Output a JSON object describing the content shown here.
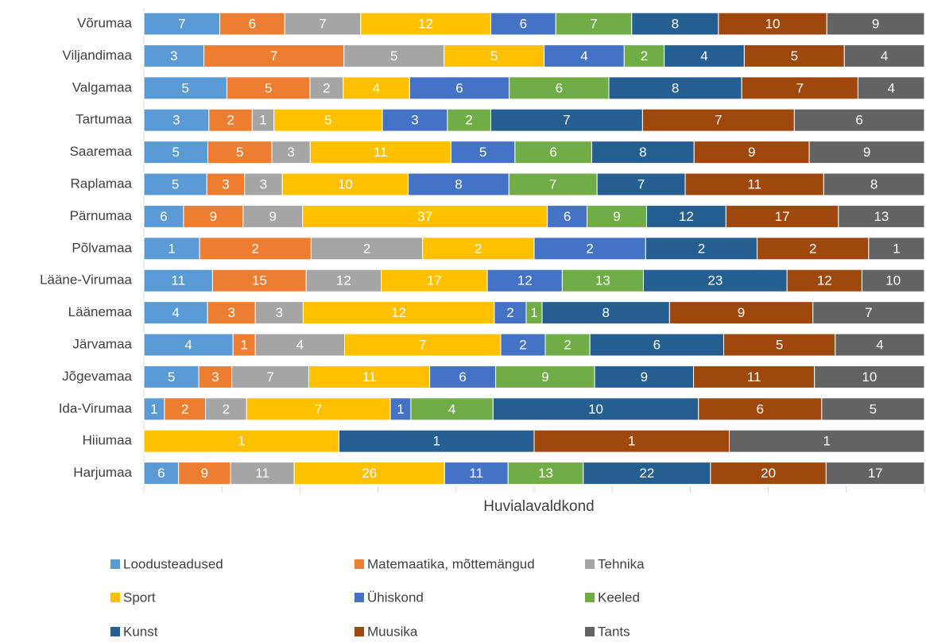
{
  "chart_data": {
    "type": "bar",
    "orientation": "horizontal",
    "stacking": "percent",
    "x_label": "Huvialavaldkond",
    "categories": [
      "Võrumaa",
      "Viljandimaa",
      "Valgamaa",
      "Tartumaa",
      "Saaremaa",
      "Raplamaa",
      "Pärnumaa",
      "Põlvamaa",
      "Lääne-Virumaa",
      "Läänemaa",
      "Järvamaa",
      "Jõgevamaa",
      "Ida-Virumaa",
      "Hiiumaa",
      "Harjumaa"
    ],
    "series": [
      {
        "name": "Loodusteadused",
        "color": "#5b9bd5",
        "values": [
          7,
          3,
          5,
          3,
          5,
          5,
          6,
          1,
          11,
          4,
          4,
          5,
          1,
          null,
          6
        ]
      },
      {
        "name": "Matemaatika, mõttemängud",
        "color": "#ed7d31",
        "values": [
          6,
          7,
          5,
          2,
          5,
          3,
          9,
          2,
          15,
          3,
          1,
          3,
          2,
          null,
          9
        ]
      },
      {
        "name": "Tehnika",
        "color": "#a5a5a5",
        "values": [
          7,
          5,
          2,
          1,
          3,
          3,
          9,
          2,
          12,
          3,
          4,
          7,
          2,
          null,
          11
        ]
      },
      {
        "name": "Sport",
        "color": "#ffc000",
        "values": [
          12,
          5,
          4,
          5,
          11,
          10,
          37,
          2,
          17,
          12,
          7,
          11,
          7,
          1,
          26
        ]
      },
      {
        "name": "Ühiskond",
        "color": "#4472c4",
        "values": [
          6,
          4,
          6,
          3,
          5,
          8,
          6,
          2,
          12,
          2,
          2,
          6,
          1,
          null,
          11
        ]
      },
      {
        "name": "Keeled",
        "color": "#70ad47",
        "values": [
          7,
          2,
          6,
          2,
          6,
          7,
          9,
          null,
          13,
          1,
          2,
          9,
          4,
          null,
          13
        ]
      },
      {
        "name": "Kunst",
        "color": "#255e91",
        "values": [
          8,
          4,
          8,
          7,
          8,
          7,
          12,
          2,
          23,
          8,
          6,
          9,
          10,
          1,
          22
        ]
      },
      {
        "name": "Muusika",
        "color": "#9e480e",
        "values": [
          10,
          5,
          7,
          7,
          9,
          11,
          17,
          2,
          12,
          9,
          5,
          11,
          6,
          1,
          20
        ]
      },
      {
        "name": "Tants",
        "color": "#636363",
        "values": [
          9,
          4,
          4,
          6,
          9,
          8,
          13,
          1,
          10,
          7,
          4,
          10,
          5,
          1,
          17
        ]
      }
    ]
  }
}
